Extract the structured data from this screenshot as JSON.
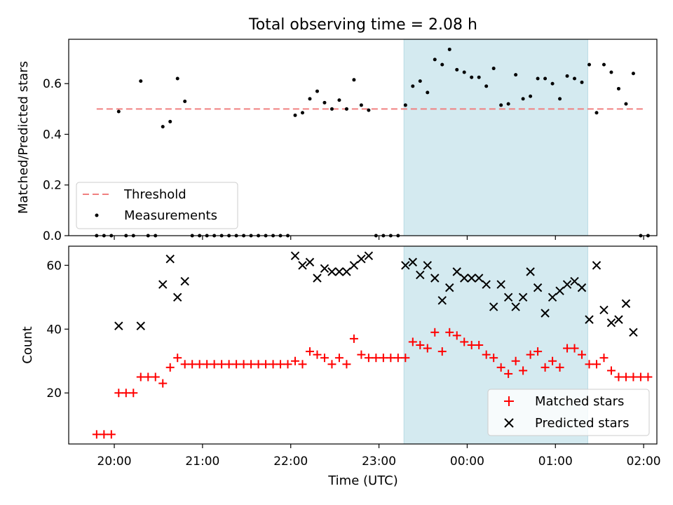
{
  "chart_data": [
    {
      "type": "scatter",
      "title": "Total observing time = 2.08 h",
      "ylabel": "Matched/Predicted stars",
      "xlabel": "",
      "ylim": [
        0,
        0.775
      ],
      "xlim": [
        "19:29",
        "02:09"
      ],
      "y_ticks": [
        "0.0",
        "0.2",
        "0.4",
        "0.6"
      ],
      "x_ticks": [
        "20:00",
        "21:00",
        "22:00",
        "23:00",
        "00:00",
        "01:00",
        "02:00"
      ],
      "x_tick_labels_visible": false,
      "shaded_span": {
        "start": "23:17",
        "end": "01:22",
        "color": "#d4eaf0"
      },
      "threshold": {
        "name": "Threshold",
        "y": 0.5,
        "x_start": "19:48",
        "x_end": "02:00",
        "color": "#f08080",
        "style": "dashed"
      },
      "legend": {
        "position": "lower-left",
        "entries": [
          "Threshold",
          "Measurements"
        ]
      },
      "series": [
        {
          "name": "Measurements",
          "marker": "dot",
          "color": "#000000",
          "points": [
            [
              "19:48",
              0.0
            ],
            [
              "19:53",
              0.0
            ],
            [
              "19:58",
              0.0
            ],
            [
              "20:03",
              0.49
            ],
            [
              "20:08",
              0.0
            ],
            [
              "20:13",
              0.0
            ],
            [
              "20:18",
              0.61
            ],
            [
              "20:23",
              0.0
            ],
            [
              "20:28",
              0.0
            ],
            [
              "20:33",
              0.43
            ],
            [
              "20:38",
              0.45
            ],
            [
              "20:43",
              0.62
            ],
            [
              "20:48",
              0.53
            ],
            [
              "20:53",
              0.0
            ],
            [
              "20:58",
              0.0
            ],
            [
              "21:03",
              0.0
            ],
            [
              "21:08",
              0.0
            ],
            [
              "21:13",
              0.0
            ],
            [
              "21:18",
              0.0
            ],
            [
              "21:23",
              0.0
            ],
            [
              "21:28",
              0.0
            ],
            [
              "21:33",
              0.0
            ],
            [
              "21:38",
              0.0
            ],
            [
              "21:43",
              0.0
            ],
            [
              "21:48",
              0.0
            ],
            [
              "21:53",
              0.0
            ],
            [
              "21:58",
              0.0
            ],
            [
              "22:03",
              0.475
            ],
            [
              "22:08",
              0.485
            ],
            [
              "22:13",
              0.54
            ],
            [
              "22:18",
              0.57
            ],
            [
              "22:23",
              0.525
            ],
            [
              "22:28",
              0.5
            ],
            [
              "22:33",
              0.535
            ],
            [
              "22:38",
              0.5
            ],
            [
              "22:43",
              0.615
            ],
            [
              "22:48",
              0.515
            ],
            [
              "22:53",
              0.495
            ],
            [
              "22:58",
              0.0
            ],
            [
              "23:03",
              0.0
            ],
            [
              "23:08",
              0.0
            ],
            [
              "23:13",
              0.0
            ],
            [
              "23:18",
              0.515
            ],
            [
              "23:23",
              0.59
            ],
            [
              "23:28",
              0.61
            ],
            [
              "23:33",
              0.565
            ],
            [
              "23:38",
              0.695
            ],
            [
              "23:43",
              0.675
            ],
            [
              "23:48",
              0.735
            ],
            [
              "23:53",
              0.655
            ],
            [
              "23:58",
              0.645
            ],
            [
              "00:03",
              0.625
            ],
            [
              "00:08",
              0.625
            ],
            [
              "00:13",
              0.59
            ],
            [
              "00:18",
              0.66
            ],
            [
              "00:23",
              0.515
            ],
            [
              "00:28",
              0.52
            ],
            [
              "00:33",
              0.635
            ],
            [
              "00:38",
              0.54
            ],
            [
              "00:43",
              0.55
            ],
            [
              "00:48",
              0.62
            ],
            [
              "00:53",
              0.62
            ],
            [
              "00:58",
              0.6
            ],
            [
              "01:03",
              0.54
            ],
            [
              "01:08",
              0.63
            ],
            [
              "01:13",
              0.62
            ],
            [
              "01:18",
              0.605
            ],
            [
              "01:23",
              0.675
            ],
            [
              "01:28",
              0.485
            ],
            [
              "01:33",
              0.675
            ],
            [
              "01:38",
              0.645
            ],
            [
              "01:43",
              0.58
            ],
            [
              "01:48",
              0.52
            ],
            [
              "01:53",
              0.64
            ],
            [
              "01:58",
              0.0
            ],
            [
              "02:03",
              0.0
            ]
          ]
        }
      ]
    },
    {
      "type": "scatter",
      "title": "",
      "ylabel": "Count",
      "xlabel": "Time (UTC)",
      "ylim": [
        4,
        66
      ],
      "xlim": [
        "19:29",
        "02:09"
      ],
      "y_ticks": [
        "20",
        "40",
        "60"
      ],
      "x_ticks": [
        "20:00",
        "21:00",
        "22:00",
        "23:00",
        "00:00",
        "01:00",
        "02:00"
      ],
      "x_tick_labels_visible": true,
      "shaded_span": {
        "start": "23:17",
        "end": "01:22",
        "color": "#d4eaf0"
      },
      "legend": {
        "position": "lower-right",
        "entries": [
          "Matched stars",
          "Predicted stars"
        ]
      },
      "series": [
        {
          "name": "Matched stars",
          "marker": "plus",
          "color": "#ff0000",
          "points": [
            [
              "19:48",
              7
            ],
            [
              "19:53",
              7
            ],
            [
              "19:58",
              7
            ],
            [
              "20:03",
              20
            ],
            [
              "20:08",
              20
            ],
            [
              "20:13",
              20
            ],
            [
              "20:18",
              25
            ],
            [
              "20:23",
              25
            ],
            [
              "20:28",
              25
            ],
            [
              "20:33",
              23
            ],
            [
              "20:38",
              28
            ],
            [
              "20:43",
              31
            ],
            [
              "20:48",
              29
            ],
            [
              "20:53",
              29
            ],
            [
              "20:58",
              29
            ],
            [
              "21:03",
              29
            ],
            [
              "21:08",
              29
            ],
            [
              "21:13",
              29
            ],
            [
              "21:18",
              29
            ],
            [
              "21:23",
              29
            ],
            [
              "21:28",
              29
            ],
            [
              "21:33",
              29
            ],
            [
              "21:38",
              29
            ],
            [
              "21:43",
              29
            ],
            [
              "21:48",
              29
            ],
            [
              "21:53",
              29
            ],
            [
              "21:58",
              29
            ],
            [
              "22:03",
              30
            ],
            [
              "22:08",
              29
            ],
            [
              "22:13",
              33
            ],
            [
              "22:18",
              32
            ],
            [
              "22:23",
              31
            ],
            [
              "22:28",
              29
            ],
            [
              "22:33",
              31
            ],
            [
              "22:38",
              29
            ],
            [
              "22:43",
              37
            ],
            [
              "22:48",
              32
            ],
            [
              "22:53",
              31
            ],
            [
              "22:58",
              31
            ],
            [
              "23:03",
              31
            ],
            [
              "23:08",
              31
            ],
            [
              "23:13",
              31
            ],
            [
              "23:18",
              31
            ],
            [
              "23:23",
              36
            ],
            [
              "23:28",
              35
            ],
            [
              "23:33",
              34
            ],
            [
              "23:38",
              39
            ],
            [
              "23:43",
              33
            ],
            [
              "23:48",
              39
            ],
            [
              "23:53",
              38
            ],
            [
              "23:58",
              36
            ],
            [
              "00:03",
              35
            ],
            [
              "00:08",
              35
            ],
            [
              "00:13",
              32
            ],
            [
              "00:18",
              31
            ],
            [
              "00:23",
              28
            ],
            [
              "00:28",
              26
            ],
            [
              "00:33",
              30
            ],
            [
              "00:38",
              27
            ],
            [
              "00:43",
              32
            ],
            [
              "00:48",
              33
            ],
            [
              "00:53",
              28
            ],
            [
              "00:58",
              30
            ],
            [
              "01:03",
              28
            ],
            [
              "01:08",
              34
            ],
            [
              "01:13",
              34
            ],
            [
              "01:18",
              32
            ],
            [
              "01:23",
              29
            ],
            [
              "01:28",
              29
            ],
            [
              "01:33",
              31
            ],
            [
              "01:38",
              27
            ],
            [
              "01:43",
              25
            ],
            [
              "01:48",
              25
            ],
            [
              "01:53",
              25
            ],
            [
              "01:58",
              25
            ],
            [
              "02:03",
              25
            ]
          ]
        },
        {
          "name": "Predicted stars",
          "marker": "x",
          "color": "#000000",
          "points": [
            [
              "20:03",
              41
            ],
            [
              "20:18",
              41
            ],
            [
              "20:33",
              54
            ],
            [
              "20:38",
              62
            ],
            [
              "20:43",
              50
            ],
            [
              "20:48",
              55
            ],
            [
              "22:03",
              63
            ],
            [
              "22:08",
              60
            ],
            [
              "22:13",
              61
            ],
            [
              "22:18",
              56
            ],
            [
              "22:23",
              59
            ],
            [
              "22:28",
              58
            ],
            [
              "22:33",
              58
            ],
            [
              "22:38",
              58
            ],
            [
              "22:43",
              60
            ],
            [
              "22:48",
              62
            ],
            [
              "22:53",
              63
            ],
            [
              "23:18",
              60
            ],
            [
              "23:23",
              61
            ],
            [
              "23:28",
              57
            ],
            [
              "23:33",
              60
            ],
            [
              "23:38",
              56
            ],
            [
              "23:43",
              49
            ],
            [
              "23:48",
              53
            ],
            [
              "23:53",
              58
            ],
            [
              "23:58",
              56
            ],
            [
              "00:03",
              56
            ],
            [
              "00:08",
              56
            ],
            [
              "00:13",
              54
            ],
            [
              "00:18",
              47
            ],
            [
              "00:23",
              54
            ],
            [
              "00:28",
              50
            ],
            [
              "00:33",
              47
            ],
            [
              "00:38",
              50
            ],
            [
              "00:43",
              58
            ],
            [
              "00:48",
              53
            ],
            [
              "00:53",
              45
            ],
            [
              "00:58",
              50
            ],
            [
              "01:03",
              52
            ],
            [
              "01:08",
              54
            ],
            [
              "01:13",
              55
            ],
            [
              "01:18",
              53
            ],
            [
              "01:23",
              43
            ],
            [
              "01:28",
              60
            ],
            [
              "01:33",
              46
            ],
            [
              "01:38",
              42
            ],
            [
              "01:43",
              43
            ],
            [
              "01:48",
              48
            ],
            [
              "01:53",
              39
            ]
          ]
        }
      ]
    }
  ]
}
